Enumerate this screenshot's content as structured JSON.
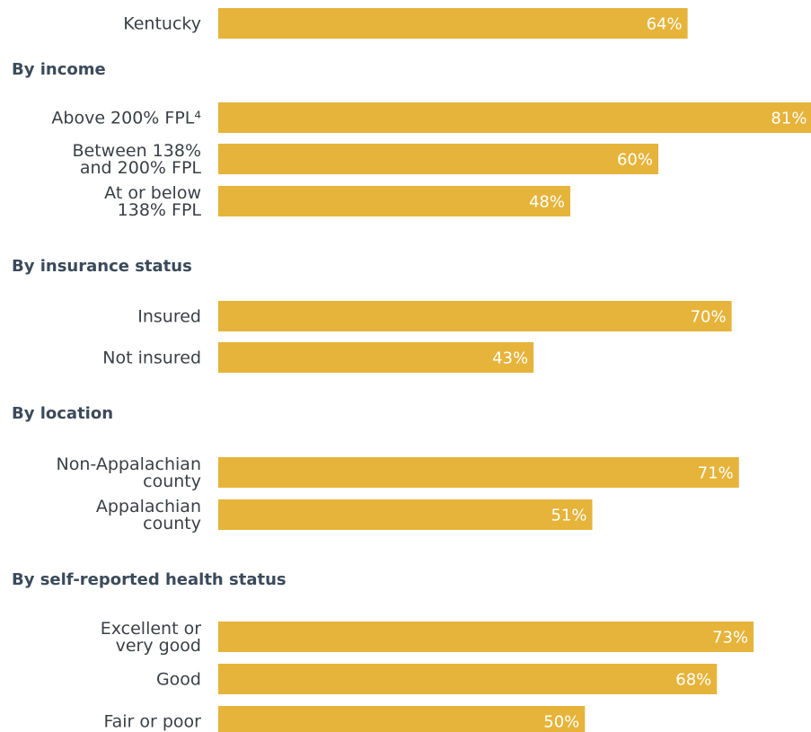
{
  "chart_data": {
    "type": "bar",
    "orientation": "horizontal",
    "value_format": "percent",
    "bar_color": "#e6b43a",
    "section_color": "#3b4a5a",
    "rows": [
      {
        "kind": "bar",
        "label": [
          "Kentucky"
        ],
        "value": 64,
        "display": "64%"
      },
      {
        "kind": "section",
        "title": "By income"
      },
      {
        "kind": "bar",
        "label": [
          "Above 200% FPL⁴"
        ],
        "value": 81,
        "display": "81%"
      },
      {
        "kind": "bar",
        "label": [
          "Between 138%",
          "and 200% FPL"
        ],
        "value": 60,
        "display": "60%"
      },
      {
        "kind": "bar",
        "label": [
          "At or below",
          "138% FPL"
        ],
        "value": 48,
        "display": "48%"
      },
      {
        "kind": "section",
        "title": "By insurance status"
      },
      {
        "kind": "bar",
        "label": [
          "Insured"
        ],
        "value": 70,
        "display": "70%"
      },
      {
        "kind": "bar",
        "label": [
          "Not insured"
        ],
        "value": 43,
        "display": "43%"
      },
      {
        "kind": "section",
        "title": "By location"
      },
      {
        "kind": "bar",
        "label": [
          "Non-Appalachian",
          "county"
        ],
        "value": 71,
        "display": "71%"
      },
      {
        "kind": "bar",
        "label": [
          "Appalachian",
          "county"
        ],
        "value": 51,
        "display": "51%"
      },
      {
        "kind": "section",
        "title": "By self-reported health status"
      },
      {
        "kind": "bar",
        "label": [
          "Excellent or",
          "very good"
        ],
        "value": 73,
        "display": "73%"
      },
      {
        "kind": "bar",
        "label": [
          "Good"
        ],
        "value": 68,
        "display": "68%"
      },
      {
        "kind": "bar",
        "label": [
          "Fair or poor"
        ],
        "value": 50,
        "display": "50%"
      }
    ]
  }
}
